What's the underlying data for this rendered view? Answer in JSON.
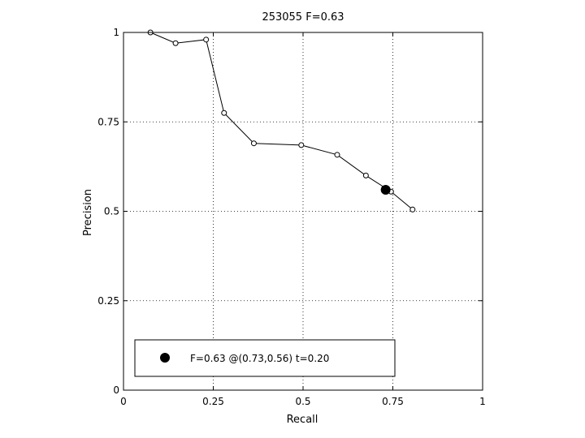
{
  "chart_data": {
    "type": "line",
    "title": "253055 F=0.63",
    "xlabel": "Recall",
    "ylabel": "Precision",
    "xlim": [
      0,
      1
    ],
    "ylim": [
      0,
      1
    ],
    "xticks": [
      0,
      0.25,
      0.5,
      0.75,
      1
    ],
    "yticks": [
      0,
      0.25,
      0.5,
      0.75,
      1
    ],
    "xtick_labels": [
      "0",
      "0.25",
      "0.5",
      "0.75",
      "1"
    ],
    "ytick_labels": [
      "0",
      "0.25",
      "0.5",
      "0.75",
      "1"
    ],
    "grid": true,
    "series": [
      {
        "marker": "open-circle",
        "x": [
          0.075,
          0.145,
          0.23,
          0.28,
          0.363,
          0.495,
          0.595,
          0.675,
          0.745,
          0.805
        ],
        "y": [
          1.0,
          0.97,
          0.98,
          0.775,
          0.69,
          0.685,
          0.658,
          0.6,
          0.555,
          0.505
        ]
      }
    ],
    "highlight": {
      "x": 0.73,
      "y": 0.56
    },
    "legend": {
      "position": "bottom",
      "text": "F=0.63 @(0.73,0.56) t=0.20"
    }
  }
}
